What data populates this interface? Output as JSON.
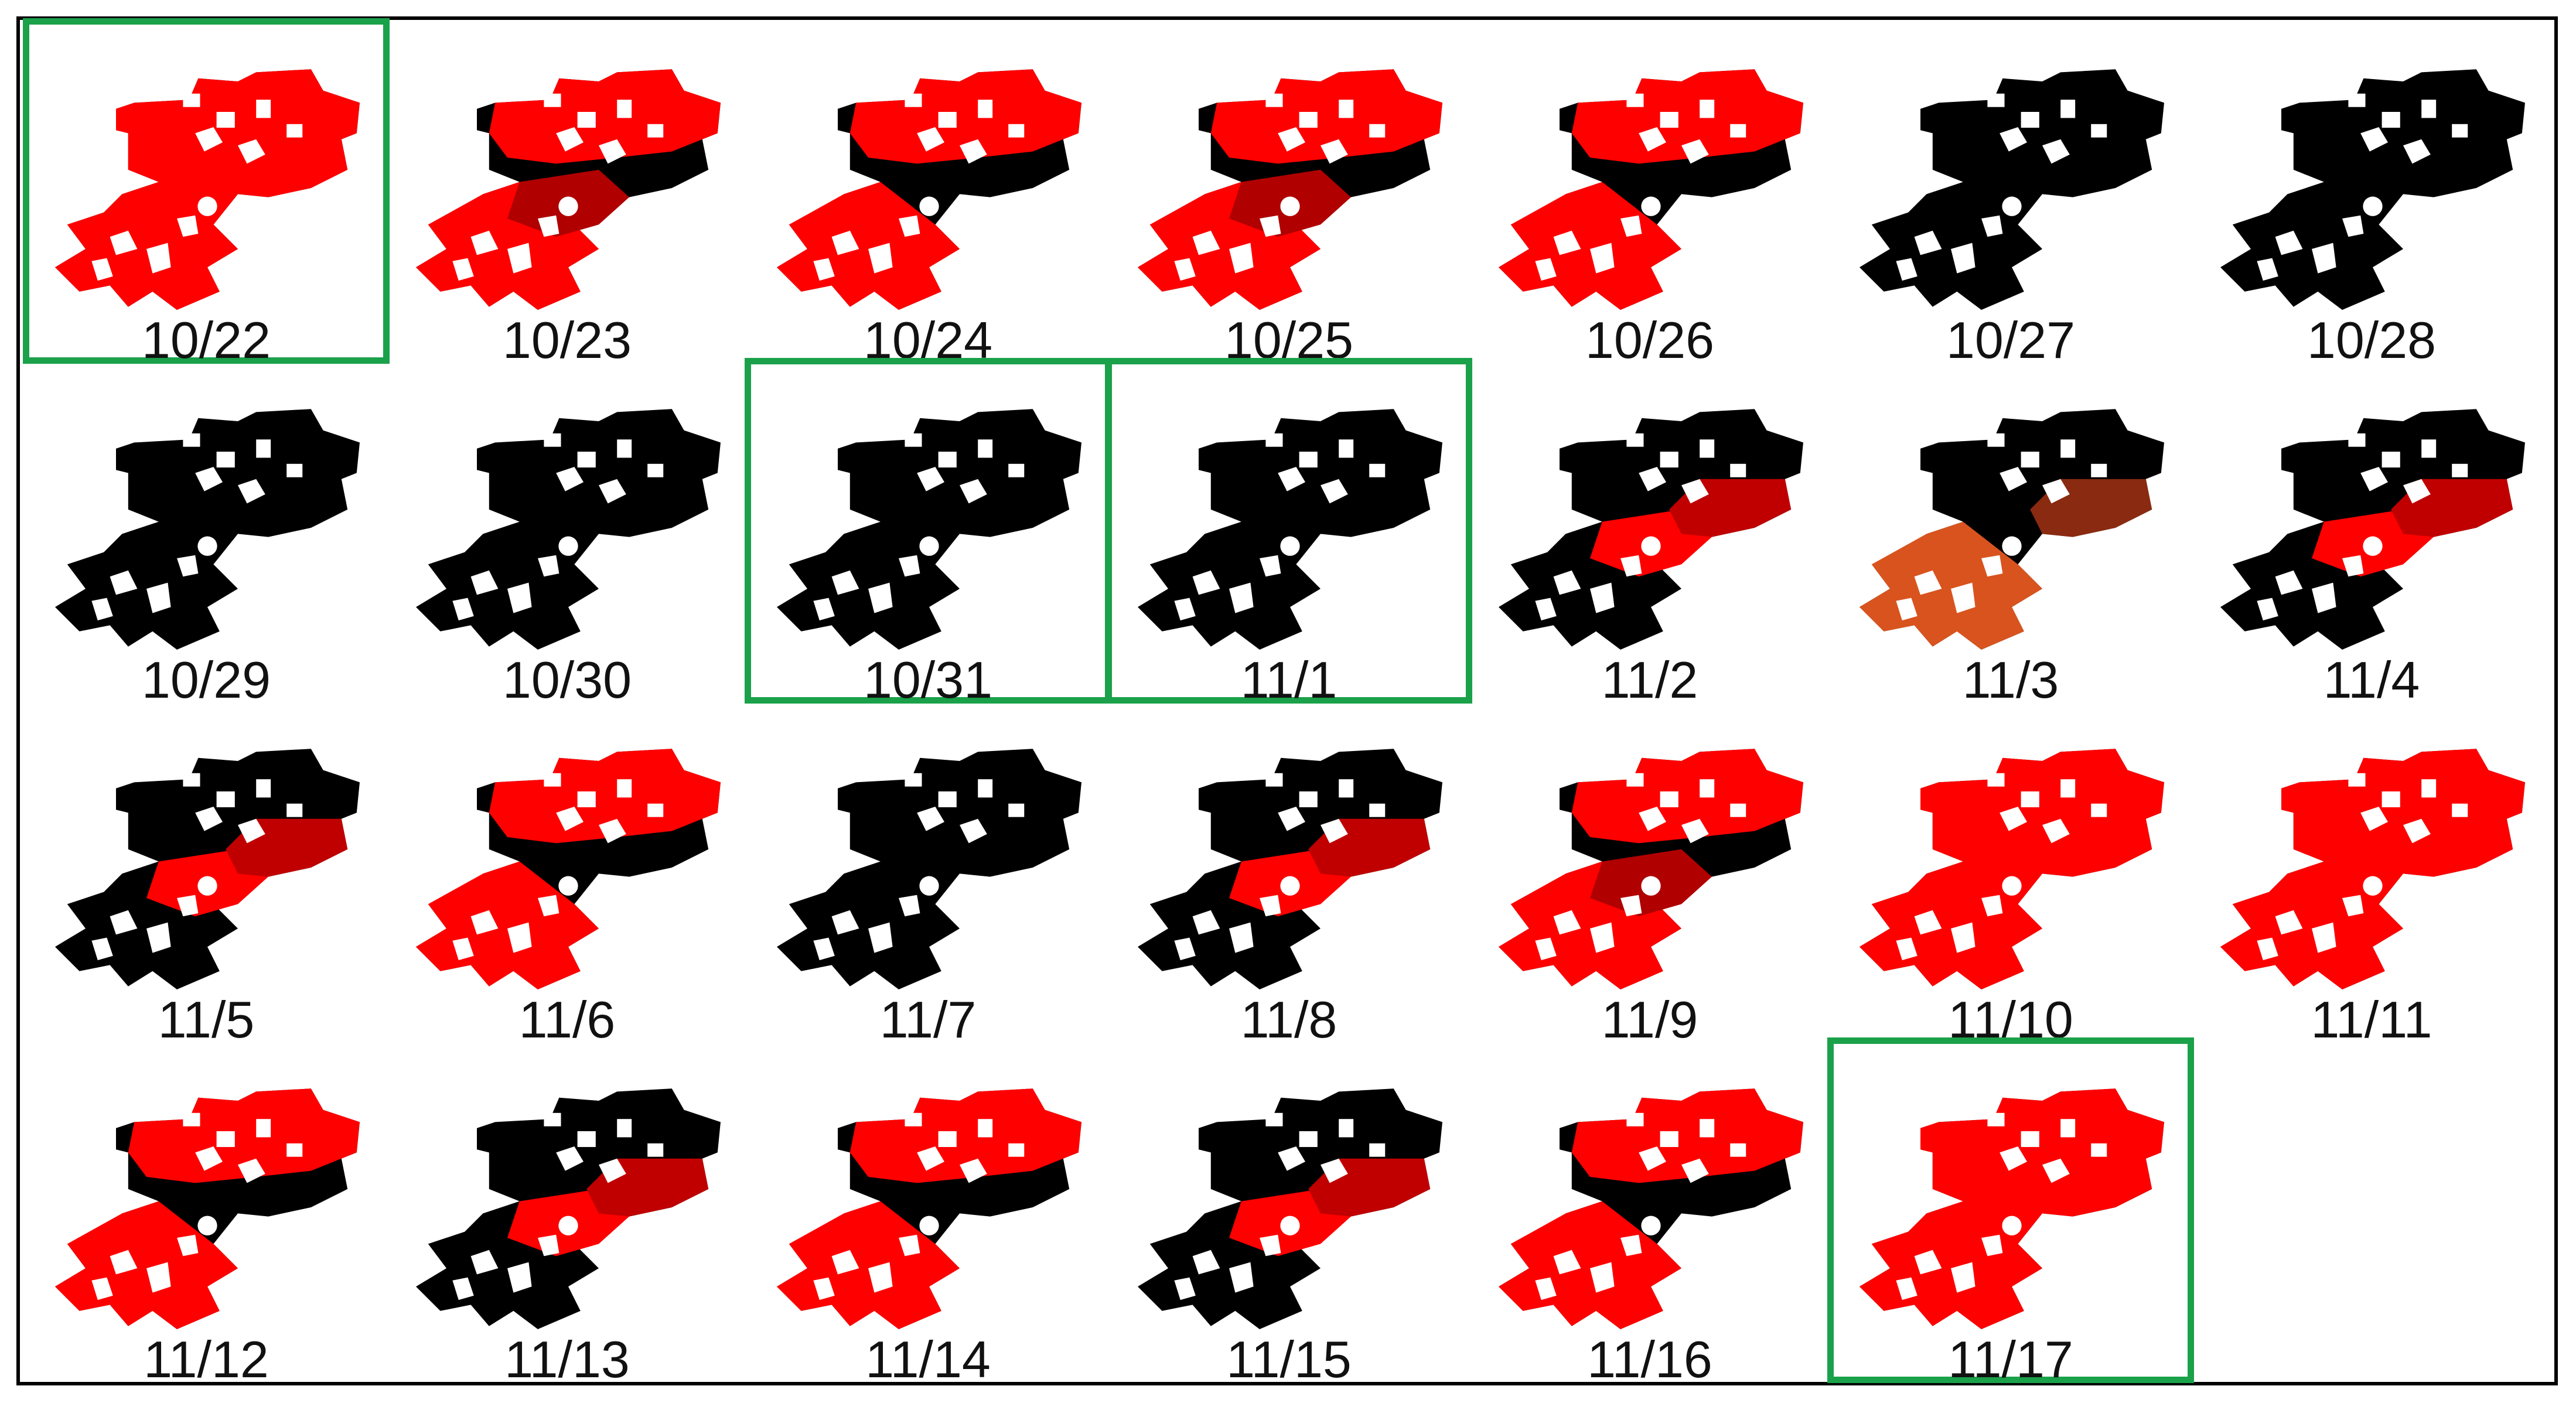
{
  "colors": {
    "border": "#000000",
    "highlight": "#1aa14a",
    "red": "#ff0000",
    "black": "#000000",
    "orange": "#d9531e"
  },
  "panels": [
    {
      "date": "10/22",
      "highlighted": true,
      "fill": "red"
    },
    {
      "date": "10/23",
      "highlighted": false,
      "fill": "mixed-red"
    },
    {
      "date": "10/24",
      "highlighted": false,
      "fill": "mixed"
    },
    {
      "date": "10/25",
      "highlighted": false,
      "fill": "mixed-red"
    },
    {
      "date": "10/26",
      "highlighted": false,
      "fill": "mixed"
    },
    {
      "date": "10/27",
      "highlighted": false,
      "fill": "black"
    },
    {
      "date": "10/28",
      "highlighted": false,
      "fill": "black"
    },
    {
      "date": "10/29",
      "highlighted": false,
      "fill": "black"
    },
    {
      "date": "10/30",
      "highlighted": false,
      "fill": "black"
    },
    {
      "date": "10/31",
      "highlighted": true,
      "fill": "black"
    },
    {
      "date": "11/1",
      "highlighted": true,
      "fill": "black"
    },
    {
      "date": "11/2",
      "highlighted": false,
      "fill": "mixed-black"
    },
    {
      "date": "11/3",
      "highlighted": false,
      "fill": "orange"
    },
    {
      "date": "11/4",
      "highlighted": false,
      "fill": "mixed-black"
    },
    {
      "date": "11/5",
      "highlighted": false,
      "fill": "mixed-black"
    },
    {
      "date": "11/6",
      "highlighted": false,
      "fill": "mixed"
    },
    {
      "date": "11/7",
      "highlighted": false,
      "fill": "black"
    },
    {
      "date": "11/8",
      "highlighted": false,
      "fill": "mixed-black"
    },
    {
      "date": "11/9",
      "highlighted": false,
      "fill": "mixed-red"
    },
    {
      "date": "11/10",
      "highlighted": false,
      "fill": "red"
    },
    {
      "date": "11/11",
      "highlighted": false,
      "fill": "red"
    },
    {
      "date": "11/12",
      "highlighted": false,
      "fill": "mixed"
    },
    {
      "date": "11/13",
      "highlighted": false,
      "fill": "mixed-black"
    },
    {
      "date": "11/14",
      "highlighted": false,
      "fill": "mixed"
    },
    {
      "date": "11/15",
      "highlighted": false,
      "fill": "mixed-black"
    },
    {
      "date": "11/16",
      "highlighted": false,
      "fill": "mixed"
    },
    {
      "date": "11/17",
      "highlighted": true,
      "fill": "red"
    }
  ]
}
